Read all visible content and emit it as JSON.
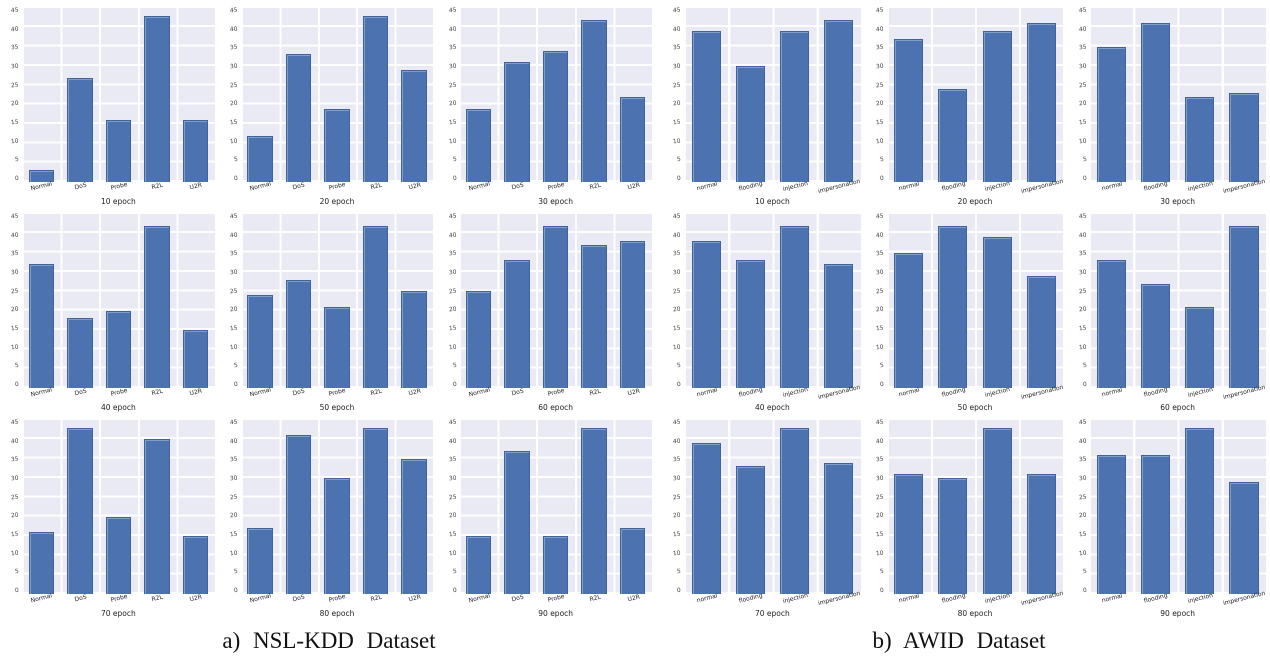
{
  "chart_data": {
    "type": "bar",
    "title": "",
    "xlabel_unit": "epoch",
    "ylim": [
      0,
      45
    ],
    "yticks": [
      0,
      5,
      10,
      15,
      20,
      25,
      30,
      35,
      40,
      45
    ],
    "grid": true,
    "legend": false,
    "bar_color": "#4c72b0",
    "plot_bg": "#e9eaf3",
    "groups": {
      "nsl": {
        "caption": "a) NSL-KDD Dataset",
        "categories": [
          "Normal",
          "DoS",
          "Probe",
          "R2L",
          "U2R"
        ],
        "charts": [
          {
            "xlabel": "10 epoch",
            "values": [
              3,
              27,
              16,
              43,
              16
            ]
          },
          {
            "xlabel": "20 epoch",
            "values": [
              12,
              33,
              19,
              43,
              29
            ]
          },
          {
            "xlabel": "30 epoch",
            "values": [
              19,
              31,
              34,
              42,
              22
            ]
          },
          {
            "xlabel": "40 epoch",
            "values": [
              32,
              18,
              20,
              42,
              15
            ]
          },
          {
            "xlabel": "50 epoch",
            "values": [
              24,
              28,
              21,
              42,
              25
            ]
          },
          {
            "xlabel": "60 epoch",
            "values": [
              25,
              33,
              42,
              37,
              38
            ]
          },
          {
            "xlabel": "70 epoch",
            "values": [
              16,
              43,
              20,
              40,
              15
            ]
          },
          {
            "xlabel": "80 epoch",
            "values": [
              17,
              41,
              30,
              43,
              35
            ]
          },
          {
            "xlabel": "90 epoch",
            "values": [
              15,
              37,
              15,
              43,
              17
            ]
          }
        ]
      },
      "awid": {
        "caption": "b) AWID Dataset",
        "categories": [
          "normal",
          "flooding",
          "injection",
          "impersonation"
        ],
        "charts": [
          {
            "xlabel": "10 epoch",
            "values": [
              39,
              30,
              39,
              42
            ]
          },
          {
            "xlabel": "20 epoch",
            "values": [
              37,
              24,
              39,
              41
            ]
          },
          {
            "xlabel": "30 epoch",
            "values": [
              35,
              41,
              22,
              23
            ]
          },
          {
            "xlabel": "40 epoch",
            "values": [
              38,
              33,
              42,
              32
            ]
          },
          {
            "xlabel": "50 epoch",
            "values": [
              35,
              42,
              39,
              29
            ]
          },
          {
            "xlabel": "60 epoch",
            "values": [
              33,
              27,
              21,
              42
            ]
          },
          {
            "xlabel": "70 epoch",
            "values": [
              39,
              33,
              43,
              34
            ]
          },
          {
            "xlabel": "80 epoch",
            "values": [
              31,
              30,
              43,
              31
            ]
          },
          {
            "xlabel": "90 epoch",
            "values": [
              36,
              36,
              43,
              29
            ]
          }
        ]
      }
    }
  }
}
